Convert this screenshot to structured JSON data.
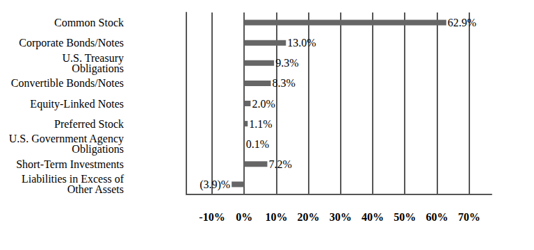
{
  "chart_data": {
    "type": "bar",
    "orientation": "horizontal",
    "categories": [
      "Common Stock",
      "Corporate Bonds/Notes",
      "U.S. Treasury\nObligations",
      "Convertible Bonds/Notes",
      "Equity-Linked Notes",
      "Preferred Stock",
      "U.S. Government Agency\nObligations",
      "Short-Term Investments",
      "Liabilities in Excess of\nOther Assets"
    ],
    "values": [
      62.9,
      13.0,
      9.3,
      8.3,
      2.0,
      1.1,
      0.1,
      7.2,
      -3.9
    ],
    "value_labels": [
      "62.9%",
      "13.0%",
      "9.3%",
      "8.3%",
      "2.0%",
      "1.1%",
      "0.1%",
      "7.2%",
      "(3.9)%"
    ],
    "color": "#666666",
    "xlim": [
      -18,
      77
    ],
    "xticks": [
      {
        "value": -10,
        "label": "-10%"
      },
      {
        "value": 0,
        "label": "0%"
      },
      {
        "value": 10,
        "label": "10%"
      },
      {
        "value": 20,
        "label": "20%"
      },
      {
        "value": 30,
        "label": "30%"
      },
      {
        "value": 40,
        "label": "40%"
      },
      {
        "value": 50,
        "label": "50%"
      },
      {
        "value": 60,
        "label": "60%"
      },
      {
        "value": 70,
        "label": "70%"
      }
    ],
    "grid": true,
    "data_labels": true
  }
}
